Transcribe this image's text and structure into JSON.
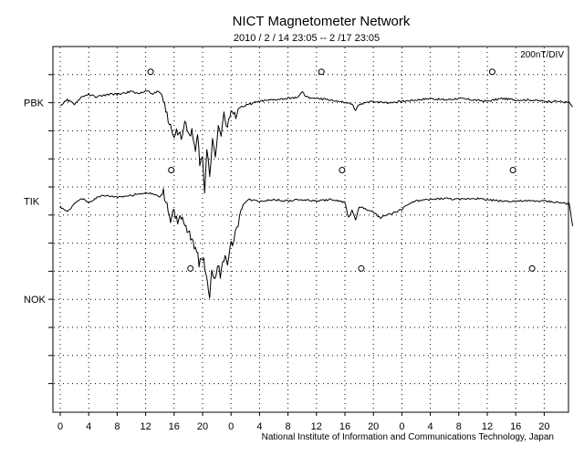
{
  "chart_data": {
    "type": "line",
    "title": "NICT Magnetometer Network",
    "subtitle": "2010 / 2 / 14  23:05 -- 2 /17  23:05",
    "scale_label": "200nT/DIV",
    "footer": "National Institute of Information and Communications Technology, Japan",
    "x_ticks": [
      "0",
      "4",
      "8",
      "12",
      "16",
      "20",
      "0",
      "4",
      "8",
      "12",
      "16",
      "20",
      "0",
      "4",
      "8",
      "12",
      "16",
      "20"
    ],
    "x_range_hours": [
      0,
      72
    ],
    "grid": "dotted",
    "stations": [
      {
        "name": "PBK",
        "baseline_div": 2,
        "markers": [
          12.7,
          36.7,
          60.7
        ],
        "trace": [
          [
            0,
            -0.1
          ],
          [
            1,
            0.1
          ],
          [
            2,
            -0.05
          ],
          [
            3,
            0.2
          ],
          [
            4,
            0.3
          ],
          [
            5,
            0.2
          ],
          [
            6,
            0.25
          ],
          [
            7,
            0.3
          ],
          [
            8,
            0.3
          ],
          [
            9,
            0.35
          ],
          [
            10,
            0.4
          ],
          [
            11,
            0.3
          ],
          [
            12,
            0.45
          ],
          [
            13,
            0.3
          ],
          [
            13.6,
            0.4
          ],
          [
            14,
            0.35
          ],
          [
            14.5,
            0.2
          ],
          [
            15,
            -0.5
          ],
          [
            15.5,
            -0.9
          ],
          [
            16,
            -1.1
          ],
          [
            16.5,
            -1.0
          ],
          [
            17,
            -1.2
          ],
          [
            17.5,
            -0.8
          ],
          [
            18,
            -1.1
          ],
          [
            18.5,
            -1.0
          ],
          [
            19,
            -1.8
          ],
          [
            19.3,
            -1.2
          ],
          [
            19.6,
            -2.1
          ],
          [
            20,
            -2.0
          ],
          [
            20.3,
            -3.3
          ],
          [
            20.6,
            -1.6
          ],
          [
            21,
            -2.5
          ],
          [
            21.4,
            -1.3
          ],
          [
            21.8,
            -1.9
          ],
          [
            22.2,
            -0.7
          ],
          [
            22.6,
            -1.2
          ],
          [
            23,
            -0.4
          ],
          [
            23.5,
            -0.9
          ],
          [
            24,
            -0.3
          ],
          [
            24.5,
            -0.5
          ],
          [
            25,
            -0.2
          ],
          [
            26,
            -0.1
          ],
          [
            28,
            0.05
          ],
          [
            30,
            0.1
          ],
          [
            32,
            0.15
          ],
          [
            33.5,
            0.2
          ],
          [
            34,
            0.4
          ],
          [
            34.5,
            0.2
          ],
          [
            36,
            0.15
          ],
          [
            38,
            0.1
          ],
          [
            41,
            -0.05
          ],
          [
            41.5,
            -0.3
          ],
          [
            42,
            -0.05
          ],
          [
            44,
            0.05
          ],
          [
            46,
            0.0
          ],
          [
            48,
            0.05
          ],
          [
            50,
            0.1
          ],
          [
            52,
            0.15
          ],
          [
            54,
            0.1
          ],
          [
            56,
            0.15
          ],
          [
            58,
            0.1
          ],
          [
            60,
            0.05
          ],
          [
            62,
            0.15
          ],
          [
            64,
            0.1
          ],
          [
            66,
            0.1
          ],
          [
            68,
            0.05
          ],
          [
            70,
            0.05
          ],
          [
            71.5,
            0.0
          ],
          [
            72,
            -0.15
          ]
        ]
      },
      {
        "name": "TIK",
        "baseline_div": 5.5,
        "markers": [
          15.6,
          39.6,
          63.6
        ],
        "trace": [
          [
            0,
            -0.2
          ],
          [
            1,
            -0.4
          ],
          [
            2,
            -0.1
          ],
          [
            3,
            0.1
          ],
          [
            4,
            -0.05
          ],
          [
            5,
            0.1
          ],
          [
            6,
            0.2
          ],
          [
            8,
            0.15
          ],
          [
            10,
            0.2
          ],
          [
            12,
            0.3
          ],
          [
            13,
            0.25
          ],
          [
            14,
            0.15
          ],
          [
            14.5,
            0.3
          ],
          [
            15,
            -0.1
          ],
          [
            15.5,
            -0.6
          ],
          [
            16,
            -0.3
          ],
          [
            16.5,
            -0.8
          ],
          [
            17,
            -0.6
          ],
          [
            17.5,
            -0.9
          ],
          [
            18,
            -1.1
          ],
          [
            18.5,
            -1.4
          ],
          [
            19,
            -1.6
          ],
          [
            19.5,
            -2.2
          ],
          [
            20,
            -2.0
          ],
          [
            20.5,
            -2.5
          ],
          [
            21,
            -3.4
          ],
          [
            21.3,
            -2.3
          ],
          [
            21.7,
            -2.9
          ],
          [
            22.1,
            -2.2
          ],
          [
            22.5,
            -2.6
          ],
          [
            23,
            -2.0
          ],
          [
            23.5,
            -2.3
          ],
          [
            24,
            -1.6
          ],
          [
            24.4,
            -1.3
          ],
          [
            24.8,
            -1.0
          ],
          [
            25.2,
            -0.5
          ],
          [
            25.7,
            -0.1
          ],
          [
            26.5,
            0.05
          ],
          [
            28,
            0.0
          ],
          [
            30,
            0.05
          ],
          [
            32,
            0.0
          ],
          [
            34,
            0.05
          ],
          [
            36,
            0.0
          ],
          [
            38,
            0.05
          ],
          [
            40,
            -0.05
          ],
          [
            40.5,
            -0.6
          ],
          [
            41,
            -0.3
          ],
          [
            41.5,
            -0.7
          ],
          [
            42,
            -0.2
          ],
          [
            44,
            -0.4
          ],
          [
            45,
            -0.6
          ],
          [
            46,
            -0.5
          ],
          [
            47,
            -0.4
          ],
          [
            48,
            -0.3
          ],
          [
            49,
            -0.1
          ],
          [
            50,
            0.0
          ],
          [
            52,
            0.05
          ],
          [
            54,
            0.1
          ],
          [
            56,
            0.05
          ],
          [
            58,
            0.1
          ],
          [
            60,
            0.05
          ],
          [
            62,
            0.0
          ],
          [
            64,
            0.0
          ],
          [
            66,
            0.0
          ],
          [
            68,
            0.0
          ],
          [
            70,
            -0.05
          ],
          [
            71.5,
            -0.1
          ],
          [
            72,
            -0.9
          ]
        ]
      },
      {
        "name": "NOK",
        "baseline_div": 9,
        "markers": [
          18.3,
          42.3,
          66.3
        ],
        "trace": []
      }
    ]
  }
}
